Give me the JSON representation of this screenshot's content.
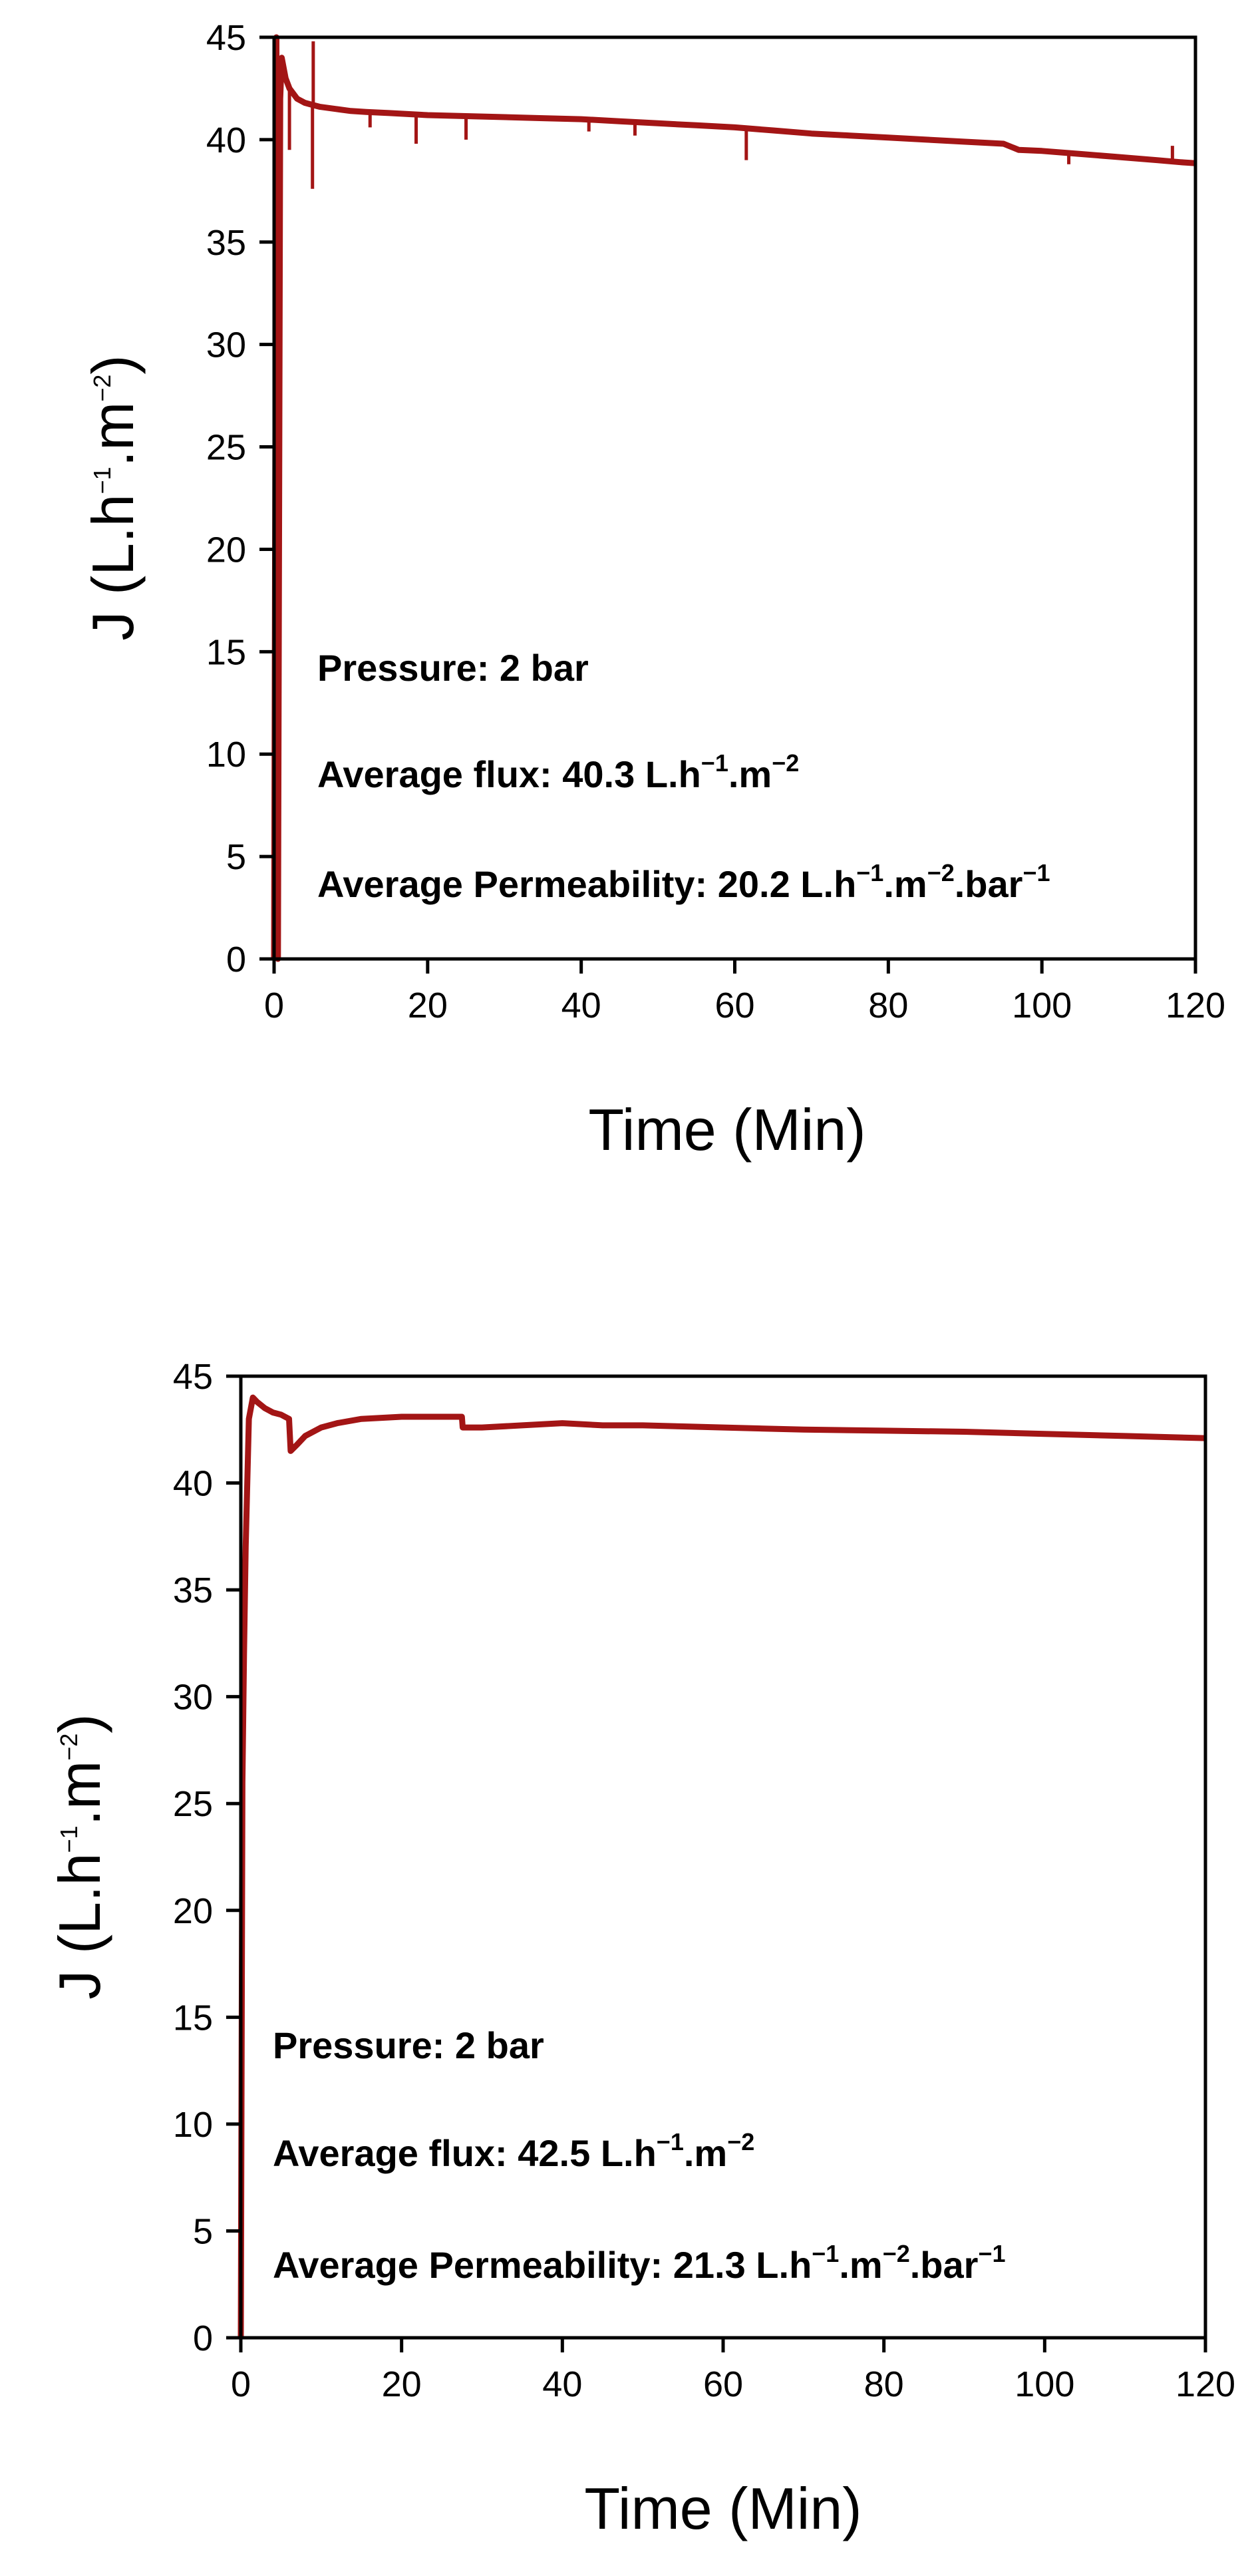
{
  "chart_data": [
    {
      "type": "line",
      "xlabel": "Time (Min)",
      "ylabel": {
        "main": "J (L.h",
        "sup1": "−1",
        "mid": ".m",
        "sup2": "−2",
        "end": ")"
      },
      "xlim": [
        0,
        120
      ],
      "ylim": [
        0,
        45
      ],
      "xticks": [
        0,
        20,
        40,
        60,
        80,
        100,
        120
      ],
      "yticks": [
        0,
        5,
        10,
        15,
        20,
        25,
        30,
        35,
        40,
        45
      ],
      "grid": false,
      "line_color": "#a31515",
      "annotations": {
        "pressure": "Pressure: 2 bar",
        "flux": {
          "a": "Average flux: 40.3 L.h",
          "s1": "−1",
          "b": ".m",
          "s2": "−2"
        },
        "perm": {
          "a": "Average Permeability: 20.2 L.h",
          "s1": "−1",
          "b": ".m",
          "s2": "−2",
          "c": ".bar",
          "s3": "−1"
        }
      },
      "series": [
        {
          "x": [
            0,
            0.3,
            0.5,
            0.8,
            1.0,
            1.5,
            2,
            3,
            4,
            5,
            6,
            8,
            10,
            12,
            15,
            20,
            25,
            30,
            35,
            40,
            45,
            50,
            55,
            60,
            65,
            70,
            75,
            80,
            85,
            90,
            95,
            97,
            100,
            105,
            110,
            115,
            118,
            120
          ],
          "y": [
            0,
            45,
            0,
            42,
            44,
            43,
            42.5,
            42,
            41.8,
            41.7,
            41.6,
            41.5,
            41.4,
            41.35,
            41.3,
            41.2,
            41.15,
            41.1,
            41.05,
            41.0,
            40.9,
            40.8,
            40.7,
            40.6,
            40.45,
            40.3,
            40.2,
            40.1,
            40.0,
            39.9,
            39.8,
            39.5,
            39.45,
            39.3,
            39.15,
            39.0,
            38.9,
            38.85
          ]
        }
      ],
      "spikes": [
        {
          "x": 2.0,
          "y": 39.5
        },
        {
          "x": 5.0,
          "y": 37.6
        },
        {
          "x": 5.1,
          "y": 44.8
        },
        {
          "x": 12.5,
          "y": 40.6
        },
        {
          "x": 18.5,
          "y": 39.8
        },
        {
          "x": 25.0,
          "y": 40.0
        },
        {
          "x": 41.0,
          "y": 40.4
        },
        {
          "x": 47.0,
          "y": 40.2
        },
        {
          "x": 61.5,
          "y": 39.0
        },
        {
          "x": 103.5,
          "y": 38.8
        },
        {
          "x": 117.0,
          "y": 39.7
        }
      ]
    },
    {
      "type": "line",
      "xlabel": "Time (Min)",
      "ylabel": {
        "main": "J (L.h",
        "sup1": "−1",
        "mid": ".m",
        "sup2": "−2",
        "end": ")"
      },
      "xlim": [
        0,
        120
      ],
      "ylim": [
        0,
        45
      ],
      "xticks": [
        0,
        20,
        40,
        60,
        80,
        100,
        120
      ],
      "yticks": [
        0,
        5,
        10,
        15,
        20,
        25,
        30,
        35,
        40,
        45
      ],
      "grid": false,
      "line_color": "#a31515",
      "annotations": {
        "pressure": "Pressure: 2 bar",
        "flux": {
          "a": "Average flux: 42.5 L.h",
          "s1": "−1",
          "b": ".m",
          "s2": "−2"
        },
        "perm": {
          "a": "Average Permeability: 21.3 L.h",
          "s1": "−1",
          "b": ".m",
          "s2": "−2",
          "c": ".bar",
          "s3": "−1"
        }
      },
      "series": [
        {
          "x": [
            0,
            0.2,
            0.4,
            0.6,
            0.8,
            1.0,
            1.5,
            2,
            3,
            4,
            5,
            6,
            6.2,
            7,
            8,
            10,
            12,
            15,
            20,
            25,
            27.5,
            27.6,
            30,
            35,
            40,
            45,
            50,
            55,
            60,
            65,
            70,
            80,
            90,
            100,
            110,
            120
          ],
          "y": [
            0,
            26,
            32,
            37,
            40,
            43,
            44,
            43.8,
            43.5,
            43.3,
            43.2,
            43.0,
            41.5,
            41.8,
            42.2,
            42.6,
            42.8,
            43.0,
            43.1,
            43.1,
            43.1,
            42.6,
            42.6,
            42.7,
            42.8,
            42.7,
            42.7,
            42.65,
            42.6,
            42.55,
            42.5,
            42.45,
            42.4,
            42.3,
            42.2,
            42.1
          ]
        }
      ],
      "spikes": []
    }
  ]
}
